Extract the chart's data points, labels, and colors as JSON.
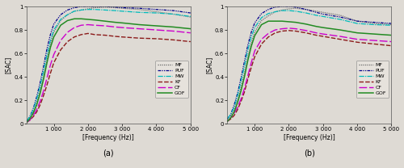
{
  "title_a": "(a)",
  "title_b": "(b)",
  "xlabel": "[Frequency (Hz)]",
  "ylabel": "[SAC]",
  "xlim": [
    200,
    5000
  ],
  "ylim": [
    0,
    1.0
  ],
  "xticks": [
    1000,
    2000,
    3000,
    4000,
    5000
  ],
  "xticklabels": [
    "1 000",
    "2 000",
    "3 000",
    "4 000",
    "5 000"
  ],
  "yticks": [
    0,
    0.2,
    0.4,
    0.6,
    0.8,
    1.0
  ],
  "yticklabels": [
    "0",
    "0.2",
    "0.4",
    "0.6",
    "0.8",
    "1"
  ],
  "legend_labels": [
    "MF",
    "PUF",
    "MW",
    "KF",
    "CF",
    "GOF"
  ],
  "colors": {
    "MF": "#6b6b6b",
    "PUF": "#00008B",
    "MW": "#00BBBB",
    "KF": "#8B1A1A",
    "CF": "#CC00CC",
    "GOF": "#228B22"
  },
  "bg_color": "#dedad4",
  "freq_a": [
    200,
    300,
    400,
    500,
    600,
    700,
    800,
    900,
    1000,
    1200,
    1400,
    1600,
    1800,
    2000,
    2200,
    2500,
    2800,
    3000,
    3500,
    4000,
    4500,
    5000
  ],
  "MF_a": [
    0.02,
    0.05,
    0.1,
    0.18,
    0.28,
    0.4,
    0.55,
    0.68,
    0.78,
    0.88,
    0.93,
    0.96,
    0.97,
    0.98,
    0.99,
    0.995,
    0.99,
    0.985,
    0.975,
    0.955,
    0.935,
    0.91
  ],
  "PUF_a": [
    0.02,
    0.06,
    0.13,
    0.23,
    0.35,
    0.49,
    0.64,
    0.76,
    0.85,
    0.93,
    0.97,
    0.99,
    1.0,
    1.0,
    1.0,
    1.0,
    0.995,
    0.99,
    0.985,
    0.975,
    0.965,
    0.945
  ],
  "MW_a": [
    0.02,
    0.06,
    0.12,
    0.21,
    0.32,
    0.45,
    0.59,
    0.71,
    0.8,
    0.89,
    0.93,
    0.96,
    0.97,
    0.975,
    0.975,
    0.97,
    0.965,
    0.96,
    0.95,
    0.945,
    0.935,
    0.915
  ],
  "KF_a": [
    0.01,
    0.03,
    0.06,
    0.1,
    0.16,
    0.24,
    0.33,
    0.43,
    0.52,
    0.63,
    0.7,
    0.74,
    0.76,
    0.77,
    0.76,
    0.755,
    0.745,
    0.74,
    0.73,
    0.725,
    0.715,
    0.7
  ],
  "CF_a": [
    0.01,
    0.03,
    0.07,
    0.12,
    0.19,
    0.28,
    0.39,
    0.5,
    0.59,
    0.71,
    0.78,
    0.82,
    0.84,
    0.845,
    0.84,
    0.835,
    0.825,
    0.82,
    0.81,
    0.8,
    0.79,
    0.775
  ],
  "GOF_a": [
    0.01,
    0.04,
    0.09,
    0.16,
    0.26,
    0.38,
    0.52,
    0.65,
    0.74,
    0.84,
    0.88,
    0.895,
    0.895,
    0.89,
    0.885,
    0.875,
    0.865,
    0.86,
    0.845,
    0.835,
    0.825,
    0.81
  ],
  "freq_b": [
    200,
    300,
    400,
    500,
    600,
    700,
    800,
    900,
    1000,
    1200,
    1400,
    1600,
    1800,
    2000,
    2200,
    2500,
    2800,
    3000,
    3500,
    4000,
    4500,
    5000
  ],
  "MF_b": [
    0.04,
    0.07,
    0.12,
    0.2,
    0.31,
    0.43,
    0.57,
    0.69,
    0.78,
    0.88,
    0.92,
    0.955,
    0.97,
    0.98,
    0.985,
    0.975,
    0.96,
    0.95,
    0.925,
    0.875,
    0.855,
    0.845
  ],
  "PUF_b": [
    0.04,
    0.08,
    0.16,
    0.26,
    0.39,
    0.53,
    0.67,
    0.78,
    0.86,
    0.94,
    0.975,
    0.995,
    1.0,
    1.0,
    0.995,
    0.975,
    0.95,
    0.935,
    0.91,
    0.875,
    0.865,
    0.855
  ],
  "MW_b": [
    0.04,
    0.08,
    0.14,
    0.24,
    0.36,
    0.49,
    0.63,
    0.74,
    0.82,
    0.905,
    0.94,
    0.955,
    0.965,
    0.965,
    0.96,
    0.945,
    0.925,
    0.915,
    0.89,
    0.855,
    0.845,
    0.84
  ],
  "KF_b": [
    0.02,
    0.04,
    0.07,
    0.12,
    0.19,
    0.27,
    0.38,
    0.48,
    0.57,
    0.68,
    0.74,
    0.775,
    0.79,
    0.795,
    0.79,
    0.775,
    0.755,
    0.745,
    0.72,
    0.695,
    0.68,
    0.665
  ],
  "CF_b": [
    0.02,
    0.05,
    0.09,
    0.14,
    0.21,
    0.3,
    0.41,
    0.52,
    0.62,
    0.72,
    0.77,
    0.8,
    0.81,
    0.815,
    0.81,
    0.795,
    0.775,
    0.765,
    0.745,
    0.72,
    0.71,
    0.7
  ],
  "GOF_b": [
    0.02,
    0.05,
    0.1,
    0.18,
    0.28,
    0.4,
    0.54,
    0.66,
    0.75,
    0.845,
    0.875,
    0.875,
    0.875,
    0.87,
    0.865,
    0.85,
    0.83,
    0.82,
    0.8,
    0.775,
    0.765,
    0.755
  ]
}
